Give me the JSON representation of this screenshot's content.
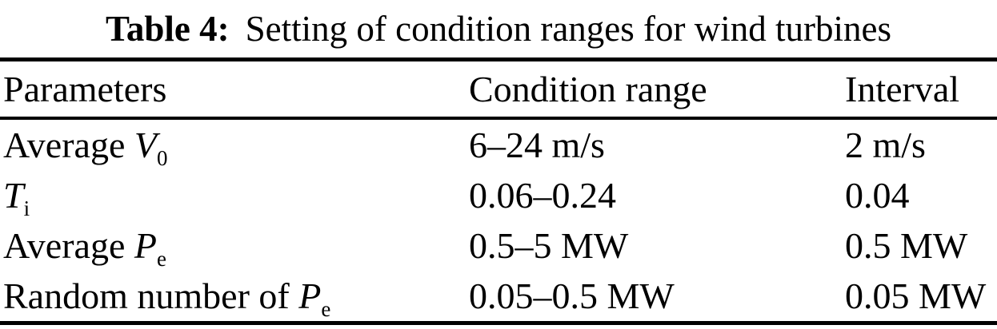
{
  "caption": {
    "label": "Table 4:",
    "text": "Setting of condition ranges for wind turbines"
  },
  "table": {
    "headers": [
      "Parameters",
      "Condition range",
      "Interval"
    ],
    "rows": [
      {
        "parameter": {
          "prefix": "Average ",
          "symbol": "V",
          "sub": "0"
        },
        "condition_range": "6–24 m/s",
        "interval": "2 m/s"
      },
      {
        "parameter": {
          "prefix": "",
          "symbol": "T",
          "sub": "i"
        },
        "condition_range": "0.06–0.24",
        "interval": "0.04"
      },
      {
        "parameter": {
          "prefix": "Average ",
          "symbol": "P",
          "sub": "e"
        },
        "condition_range": "0.5–5 MW",
        "interval": "0.5 MW"
      },
      {
        "parameter": {
          "prefix": "Random number of ",
          "symbol": "P",
          "sub": "e"
        },
        "condition_range": "0.05–0.5 MW",
        "interval": "0.05 MW"
      }
    ]
  },
  "colors": {
    "text": "#000000",
    "background": "#ffffff",
    "rule": "#000000"
  }
}
